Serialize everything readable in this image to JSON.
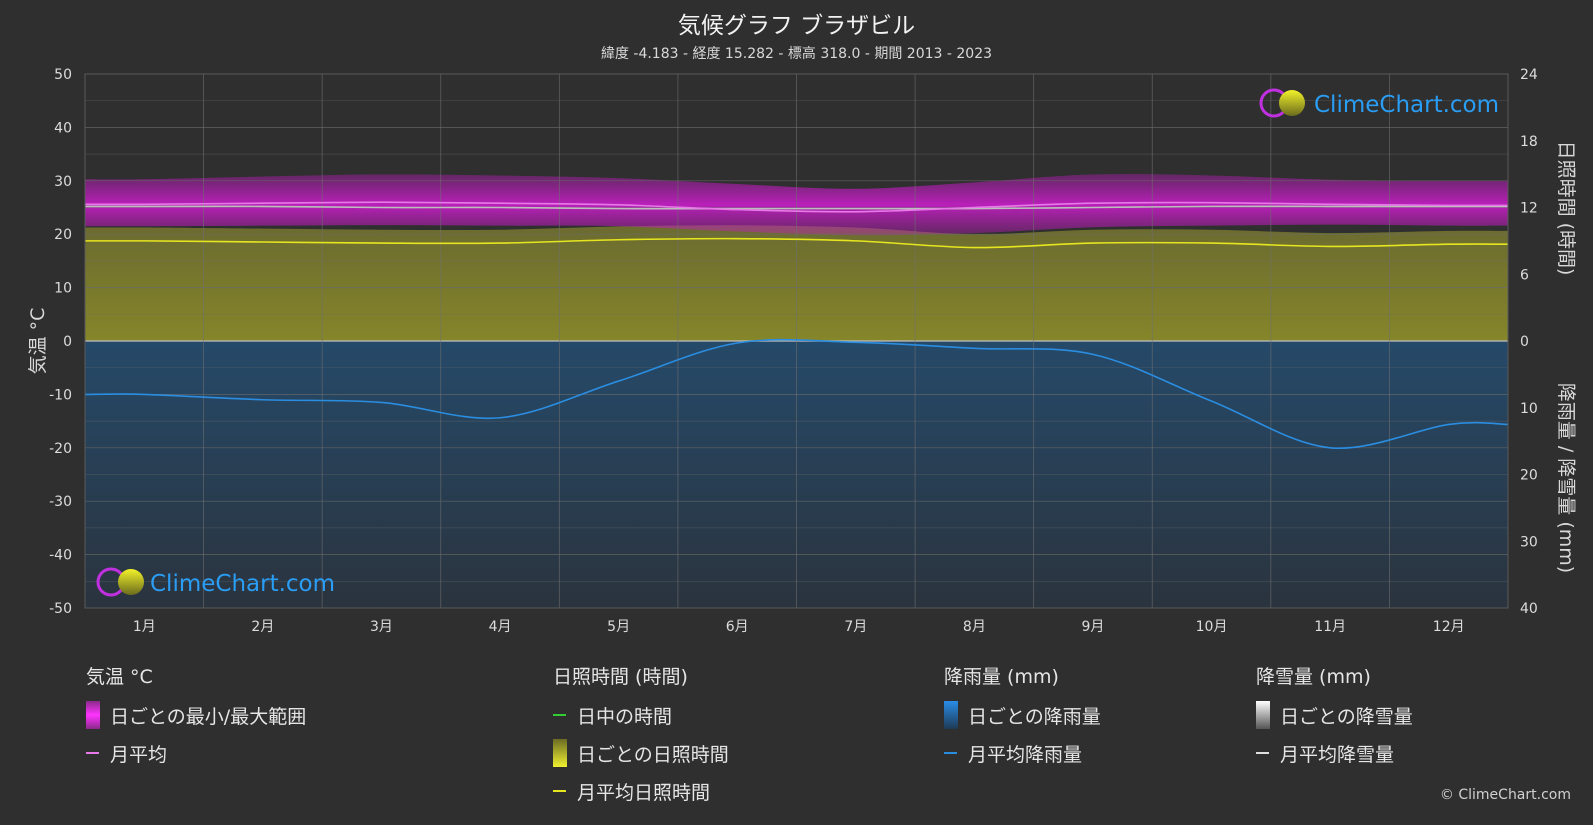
{
  "header": {
    "title": "気候グラフ ブラザビル",
    "subtitle": "緯度 -4.183 - 経度 15.282 - 標高 318.0 - 期間 2013 - 2023"
  },
  "watermark": {
    "text": "ClimeChart.com"
  },
  "copyright": "© ClimeChart.com",
  "colors": {
    "temp_range": "#d21dd2",
    "temp_mean": "#e879e8",
    "daylight": "#33cc33",
    "sunshine": "#d6d62e",
    "sunshine_mean": "#e6e620",
    "rain": "#1f6fb5",
    "rain_mean": "#2b8de0",
    "snow_mean": "#e0e0e0"
  },
  "legend": {
    "temperature": {
      "title": "気温 °C",
      "range": "日ごとの最小/最大範囲",
      "mean": "月平均"
    },
    "sunshine": {
      "title": "日照時間 (時間)",
      "daylight": "日中の時間",
      "daily": "日ごとの日照時間",
      "mean": "月平均日照時間"
    },
    "rain": {
      "title": "降雨量 (mm)",
      "daily": "日ごとの降雨量",
      "mean": "月平均降雨量"
    },
    "snow": {
      "title": "降雪量 (mm)",
      "daily": "日ごとの降雪量",
      "mean": "月平均降雪量"
    }
  },
  "chart_data": {
    "type": "line",
    "categories": [
      "1月",
      "2月",
      "3月",
      "4月",
      "5月",
      "6月",
      "7月",
      "8月",
      "9月",
      "10月",
      "11月",
      "12月"
    ],
    "axes": {
      "left": {
        "label": "気温 °C",
        "ticks": [
          "50",
          "40",
          "30",
          "20",
          "10",
          "0",
          "-10",
          "-20",
          "-30",
          "-40",
          "-50"
        ],
        "ylim": [
          -50,
          50
        ]
      },
      "right_top": {
        "label": "日照時間 (時間)",
        "ticks": [
          "24",
          "18",
          "12",
          "6",
          "0"
        ],
        "ylim": [
          0,
          24
        ]
      },
      "right_bottom": {
        "label": "降雨量 / 降雪量 (mm)",
        "ticks": [
          "0",
          "10",
          "20",
          "30",
          "40"
        ],
        "ylim": [
          0,
          40
        ]
      }
    },
    "grid": true,
    "series": [
      {
        "name": "日ごとの最小/最大範囲",
        "type": "range",
        "min": [
          21.5,
          21.6,
          21.7,
          21.6,
          21.5,
          20.5,
          19.8,
          20.2,
          21.3,
          21.6,
          21.8,
          21.6
        ],
        "max": [
          30.3,
          30.8,
          31.2,
          31.0,
          30.5,
          29.4,
          28.5,
          29.7,
          31.2,
          31.0,
          30.2,
          30.0
        ]
      },
      {
        "name": "月平均",
        "type": "line",
        "values": [
          25.6,
          25.8,
          26.0,
          25.8,
          25.5,
          24.6,
          24.2,
          25.0,
          25.8,
          25.9,
          25.6,
          25.4
        ]
      },
      {
        "name": "日中の時間",
        "type": "line",
        "values": [
          12.1,
          12.1,
          12.0,
          12.0,
          11.9,
          11.9,
          11.9,
          11.9,
          12.0,
          12.1,
          12.1,
          12.1
        ]
      },
      {
        "name": "月平均日照時間",
        "type": "line",
        "values": [
          9.0,
          8.9,
          8.8,
          8.8,
          9.1,
          9.2,
          9.0,
          8.4,
          8.8,
          8.8,
          8.5,
          8.7
        ]
      },
      {
        "name": "月平均降雨量",
        "type": "line",
        "values": [
          8.0,
          8.8,
          9.2,
          11.5,
          6.0,
          0.3,
          0.2,
          1.1,
          2.0,
          9.0,
          16.0,
          12.5
        ]
      }
    ]
  }
}
